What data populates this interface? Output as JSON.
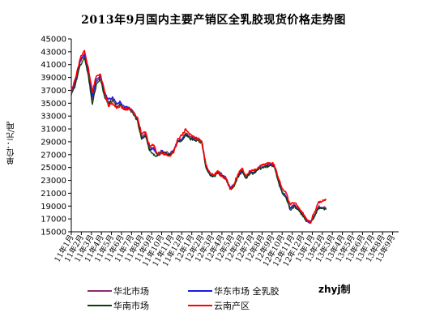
{
  "chart_data": {
    "type": "line",
    "title": "2013年9月国内主要产销区全乳胶现货价格走势图",
    "ylabel": "单位：元/吨",
    "xlabel": "",
    "ylim": [
      15000,
      45000
    ],
    "yticks": [
      15000,
      17000,
      19000,
      21000,
      23000,
      25000,
      27000,
      29000,
      31000,
      33000,
      35000,
      37000,
      39000,
      41000,
      43000,
      45000
    ],
    "x_labels": [
      "11年1月",
      "11年2月",
      "11年3月",
      "11年4月",
      "11年5月",
      "11年6月",
      "11年7月",
      "11年8月",
      "11年9月",
      "11年10月",
      "11年11月",
      "11年12月",
      "12年1月",
      "12年2月",
      "12年3月",
      "12年4月",
      "12年5月",
      "12年6月",
      "12年7月",
      "12年8月",
      "12年9月",
      "12年10月",
      "12年11月",
      "12年12月",
      "13年1月",
      "13年2月",
      "13年3月",
      "13年4月",
      "13年5月",
      "13年6月",
      "13年7月",
      "13年8月",
      "13年9月"
    ],
    "grid": false,
    "legend_position": "bottom",
    "series": [
      {
        "name": "华北市场",
        "color": "#8b2c6e",
        "values": [
          [
            0,
            36500
          ],
          [
            0.4,
            38200
          ],
          [
            0.9,
            41500
          ],
          [
            1.3,
            42500
          ],
          [
            1.7,
            39800
          ],
          [
            2.1,
            35500
          ],
          [
            2.5,
            38500
          ],
          [
            2.9,
            39000
          ],
          [
            3.3,
            36500
          ],
          [
            3.7,
            35200
          ],
          [
            4.1,
            35800
          ],
          [
            4.5,
            34800
          ],
          [
            4.9,
            35000
          ],
          [
            5.3,
            34200
          ],
          [
            5.7,
            34300
          ],
          [
            6.1,
            33800
          ],
          [
            6.6,
            32500
          ],
          [
            7.0,
            29800
          ],
          [
            7.4,
            30200
          ],
          [
            7.8,
            28000
          ],
          [
            8.2,
            28200
          ],
          [
            8.6,
            27200
          ],
          [
            9.0,
            27600
          ],
          [
            9.4,
            27400
          ],
          [
            9.8,
            27100
          ],
          [
            10.2,
            27800
          ],
          [
            10.6,
            29200
          ],
          [
            11.0,
            29400
          ],
          [
            11.4,
            30400
          ],
          [
            11.8,
            29800
          ],
          [
            12.2,
            29600
          ],
          [
            12.6,
            29500
          ],
          [
            13.0,
            29100
          ],
          [
            13.4,
            25300
          ],
          [
            13.8,
            24000
          ],
          [
            14.2,
            23800
          ],
          [
            14.6,
            24300
          ],
          [
            15.0,
            23900
          ],
          [
            15.4,
            23500
          ],
          [
            15.8,
            21900
          ],
          [
            16.2,
            22300
          ],
          [
            16.6,
            23700
          ],
          [
            17.0,
            24600
          ],
          [
            17.4,
            23500
          ],
          [
            17.8,
            24200
          ],
          [
            18.2,
            24300
          ],
          [
            18.6,
            24900
          ],
          [
            19.0,
            25200
          ],
          [
            19.4,
            25300
          ],
          [
            19.8,
            25500
          ],
          [
            20.2,
            25300
          ],
          [
            20.6,
            23200
          ],
          [
            21.0,
            21300
          ],
          [
            21.4,
            20500
          ],
          [
            21.8,
            18700
          ],
          [
            22.2,
            19200
          ],
          [
            22.6,
            18600
          ],
          [
            23.0,
            17800
          ],
          [
            23.4,
            16800
          ],
          [
            23.8,
            16600
          ],
          [
            24.2,
            17500
          ],
          [
            24.6,
            18900
          ],
          [
            25.0,
            18800
          ],
          [
            25.4,
            18700
          ]
        ]
      },
      {
        "name": "华东市场  全乳胶",
        "color": "#1a1ae6",
        "values": [
          [
            0,
            36800
          ],
          [
            0.4,
            38500
          ],
          [
            0.9,
            41800
          ],
          [
            1.3,
            42700
          ],
          [
            1.7,
            40000
          ],
          [
            2.1,
            36000
          ],
          [
            2.5,
            38800
          ],
          [
            2.9,
            39200
          ],
          [
            3.3,
            36700
          ],
          [
            3.7,
            35600
          ],
          [
            4.1,
            36000
          ],
          [
            4.5,
            35000
          ],
          [
            4.9,
            35200
          ],
          [
            5.3,
            34300
          ],
          [
            5.7,
            34400
          ],
          [
            6.1,
            33900
          ],
          [
            6.6,
            32300
          ],
          [
            7.0,
            29600
          ],
          [
            7.4,
            30000
          ],
          [
            7.8,
            27800
          ],
          [
            8.2,
            27900
          ],
          [
            8.6,
            27000
          ],
          [
            9.0,
            27500
          ],
          [
            9.4,
            27300
          ],
          [
            9.8,
            27000
          ],
          [
            10.2,
            27600
          ],
          [
            10.6,
            29000
          ],
          [
            11.0,
            29200
          ],
          [
            11.4,
            30200
          ],
          [
            11.8,
            29600
          ],
          [
            12.2,
            29400
          ],
          [
            12.6,
            29300
          ],
          [
            13.0,
            28900
          ],
          [
            13.4,
            25100
          ],
          [
            13.8,
            23900
          ],
          [
            14.2,
            23700
          ],
          [
            14.6,
            24200
          ],
          [
            15.0,
            23800
          ],
          [
            15.4,
            23300
          ],
          [
            15.8,
            21800
          ],
          [
            16.2,
            22200
          ],
          [
            16.6,
            23600
          ],
          [
            17.0,
            24500
          ],
          [
            17.4,
            23400
          ],
          [
            17.8,
            24100
          ],
          [
            18.2,
            24200
          ],
          [
            18.6,
            24800
          ],
          [
            19.0,
            25100
          ],
          [
            19.4,
            25200
          ],
          [
            19.8,
            25400
          ],
          [
            20.2,
            25200
          ],
          [
            20.6,
            23000
          ],
          [
            21.0,
            21200
          ],
          [
            21.4,
            20400
          ],
          [
            21.8,
            18600
          ],
          [
            22.2,
            19100
          ],
          [
            22.6,
            18500
          ],
          [
            23.0,
            17700
          ],
          [
            23.4,
            16700
          ],
          [
            23.8,
            16500
          ],
          [
            24.2,
            17400
          ],
          [
            24.6,
            18800
          ],
          [
            25.0,
            18700
          ],
          [
            25.4,
            18600
          ]
        ]
      },
      {
        "name": "华南市场",
        "color": "#0d3d0d",
        "values": [
          [
            0,
            36200
          ],
          [
            0.4,
            37800
          ],
          [
            0.9,
            41000
          ],
          [
            1.3,
            42000
          ],
          [
            1.7,
            39200
          ],
          [
            2.1,
            34800
          ],
          [
            2.5,
            38000
          ],
          [
            2.9,
            38700
          ],
          [
            3.3,
            36000
          ],
          [
            3.7,
            34800
          ],
          [
            4.1,
            35400
          ],
          [
            4.5,
            34500
          ],
          [
            4.9,
            34800
          ],
          [
            5.3,
            34000
          ],
          [
            5.7,
            34100
          ],
          [
            6.1,
            33600
          ],
          [
            6.6,
            32200
          ],
          [
            7.0,
            29400
          ],
          [
            7.4,
            29800
          ],
          [
            7.8,
            27600
          ],
          [
            8.2,
            26900
          ],
          [
            8.6,
            26800
          ],
          [
            9.0,
            27300
          ],
          [
            9.4,
            27100
          ],
          [
            9.8,
            26900
          ],
          [
            10.2,
            27500
          ],
          [
            10.6,
            29000
          ],
          [
            11.0,
            29100
          ],
          [
            11.4,
            30100
          ],
          [
            11.8,
            29500
          ],
          [
            12.2,
            29300
          ],
          [
            12.6,
            29200
          ],
          [
            13.0,
            28800
          ],
          [
            13.4,
            25000
          ],
          [
            13.8,
            23800
          ],
          [
            14.2,
            23600
          ],
          [
            14.6,
            24100
          ],
          [
            15.0,
            23700
          ],
          [
            15.4,
            23200
          ],
          [
            15.8,
            21600
          ],
          [
            16.2,
            22000
          ],
          [
            16.6,
            23500
          ],
          [
            17.0,
            24400
          ],
          [
            17.4,
            23300
          ],
          [
            17.8,
            24000
          ],
          [
            18.2,
            24100
          ],
          [
            18.6,
            24700
          ],
          [
            19.0,
            25000
          ],
          [
            19.4,
            25100
          ],
          [
            19.8,
            25300
          ],
          [
            20.2,
            25100
          ],
          [
            20.6,
            22900
          ],
          [
            21.0,
            21000
          ],
          [
            21.4,
            20200
          ],
          [
            21.8,
            18400
          ],
          [
            22.2,
            19000
          ],
          [
            22.6,
            18400
          ],
          [
            23.0,
            17600
          ],
          [
            23.4,
            16600
          ],
          [
            23.8,
            16300
          ],
          [
            24.2,
            17300
          ],
          [
            24.6,
            18700
          ],
          [
            25.0,
            18600
          ],
          [
            25.4,
            18500
          ]
        ]
      },
      {
        "name": "云南产区",
        "color": "#ff0000",
        "values": [
          [
            0,
            37000
          ],
          [
            0.4,
            38800
          ],
          [
            0.9,
            42000
          ],
          [
            1.3,
            43200
          ],
          [
            1.7,
            40500
          ],
          [
            2.1,
            36800
          ],
          [
            2.5,
            39200
          ],
          [
            2.9,
            39500
          ],
          [
            3.3,
            36900
          ],
          [
            3.7,
            34500
          ],
          [
            4.1,
            35000
          ],
          [
            4.5,
            34200
          ],
          [
            4.9,
            34600
          ],
          [
            5.3,
            34000
          ],
          [
            5.7,
            34200
          ],
          [
            6.1,
            33700
          ],
          [
            6.6,
            32800
          ],
          [
            7.0,
            30200
          ],
          [
            7.4,
            30500
          ],
          [
            7.8,
            28300
          ],
          [
            8.2,
            28500
          ],
          [
            8.6,
            27100
          ],
          [
            9.0,
            27300
          ],
          [
            9.4,
            27000
          ],
          [
            9.8,
            26800
          ],
          [
            10.2,
            27300
          ],
          [
            10.6,
            29500
          ],
          [
            11.0,
            30000
          ],
          [
            11.4,
            31000
          ],
          [
            11.8,
            30200
          ],
          [
            12.2,
            29800
          ],
          [
            12.6,
            29400
          ],
          [
            13.0,
            29000
          ],
          [
            13.4,
            25500
          ],
          [
            13.8,
            24200
          ],
          [
            14.2,
            23800
          ],
          [
            14.6,
            24500
          ],
          [
            15.0,
            23600
          ],
          [
            15.4,
            23300
          ],
          [
            15.8,
            21700
          ],
          [
            16.2,
            22400
          ],
          [
            16.6,
            24000
          ],
          [
            17.0,
            24900
          ],
          [
            17.4,
            23700
          ],
          [
            17.8,
            24400
          ],
          [
            18.2,
            24500
          ],
          [
            18.6,
            25000
          ],
          [
            19.0,
            25400
          ],
          [
            19.4,
            25600
          ],
          [
            19.8,
            25700
          ],
          [
            20.2,
            25500
          ],
          [
            20.6,
            23500
          ],
          [
            21.0,
            21700
          ],
          [
            21.4,
            21000
          ],
          [
            21.8,
            19200
          ],
          [
            22.2,
            19500
          ],
          [
            22.6,
            18900
          ],
          [
            23.0,
            18000
          ],
          [
            23.4,
            17000
          ],
          [
            23.8,
            16400
          ],
          [
            24.2,
            18000
          ],
          [
            24.6,
            19600
          ],
          [
            25.0,
            19700
          ],
          [
            25.4,
            20000
          ]
        ]
      }
    ]
  },
  "credit": "zhyj制"
}
